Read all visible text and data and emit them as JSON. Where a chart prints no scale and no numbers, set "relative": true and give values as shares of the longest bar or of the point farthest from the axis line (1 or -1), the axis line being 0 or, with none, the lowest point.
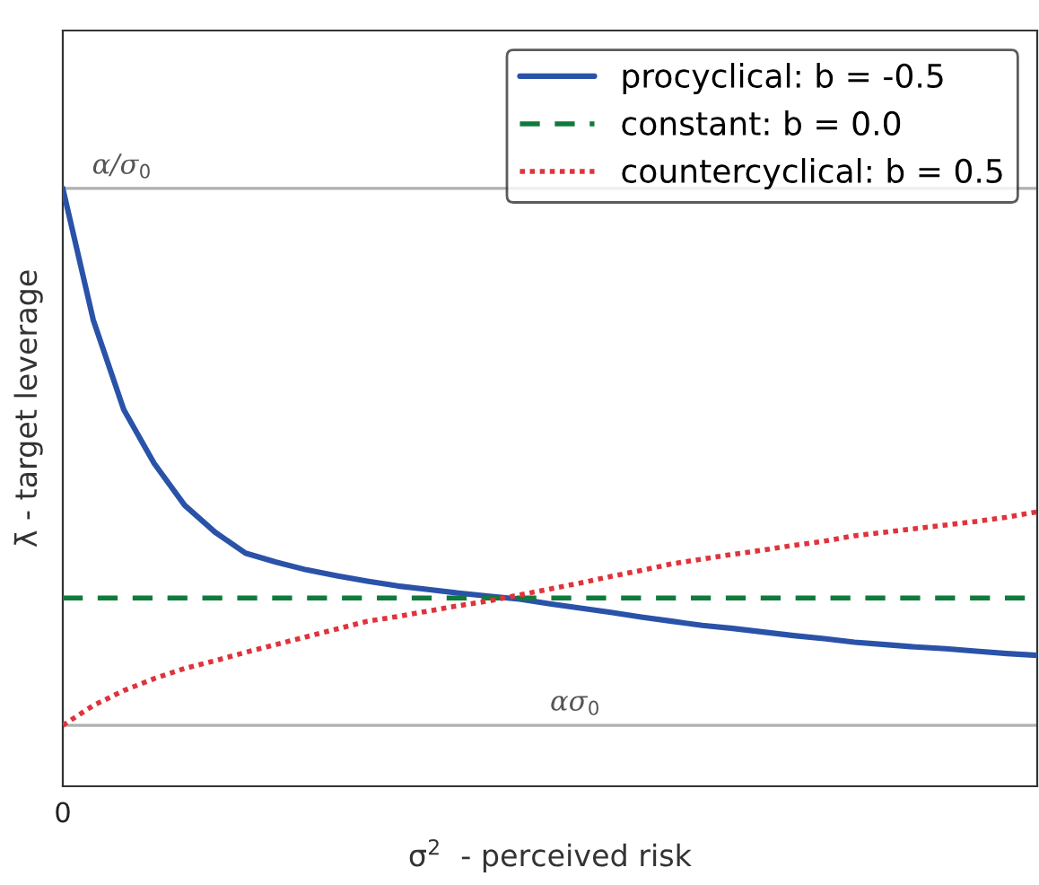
{
  "chart_data": {
    "type": "line",
    "relative": true,
    "xlabel": "σ$^{2}$  - perceived risk",
    "ylabel": "λ̄ - target leverage",
    "legend": "top right",
    "annotations": [
      "0"
    ],
    "categories": [
      null,
      null,
      null,
      null,
      null,
      null,
      null,
      null,
      null,
      null,
      null,
      null,
      null,
      null,
      null,
      null,
      null,
      null,
      null,
      null,
      null,
      null,
      null,
      null,
      null,
      null,
      null,
      null,
      null,
      null,
      null,
      null,
      null
    ],
    "series": [
      {
        "name": "procyclical: b = -0.5",
        "color": "#2a52a8",
        "line_style": "solid",
        "values": [
          1.0,
          0.78,
          0.63,
          0.54,
          0.47,
          0.425,
          0.39,
          0.375,
          0.362,
          0.352,
          0.343,
          0.335,
          0.329,
          0.323,
          0.318,
          0.313,
          0.305,
          0.298,
          0.291,
          0.283,
          0.276,
          0.269,
          0.264,
          0.258,
          0.252,
          0.247,
          0.241,
          0.237,
          0.233,
          0.23,
          0.226,
          0.222,
          0.219
        ]
      },
      {
        "name": "constant: b = 0.0",
        "color": "#0f7a3c",
        "line_style": "dashed",
        "values": [
          0.315,
          0.315,
          0.315,
          0.315,
          0.315,
          0.315,
          0.315,
          0.315,
          0.315,
          0.315,
          0.315,
          0.315,
          0.315,
          0.315,
          0.315,
          0.315,
          0.315,
          0.315,
          0.315,
          0.315,
          0.315,
          0.315,
          0.315,
          0.315,
          0.315,
          0.315,
          0.315,
          0.315,
          0.315,
          0.315,
          0.315,
          0.315,
          0.315
        ]
      },
      {
        "name": "countercyclical: b = 0.5",
        "color": "#e0333c",
        "line_style": "dotted",
        "values": [
          0.102,
          0.135,
          0.16,
          0.18,
          0.197,
          0.21,
          0.224,
          0.237,
          0.25,
          0.263,
          0.276,
          0.284,
          0.293,
          0.302,
          0.31,
          0.32,
          0.33,
          0.34,
          0.351,
          0.361,
          0.372,
          0.38,
          0.388,
          0.395,
          0.403,
          0.41,
          0.419,
          0.425,
          0.431,
          0.437,
          0.443,
          0.45,
          0.459
        ]
      }
    ],
    "ref_lines": [
      {
        "axis": "y",
        "value": 1.0,
        "label": "α/σ$_{0}$",
        "color": "#b0b0b0"
      },
      {
        "axis": "y",
        "value": 0.102,
        "label": "ασ$_{0}$",
        "color": "#b0b0b0"
      }
    ]
  }
}
